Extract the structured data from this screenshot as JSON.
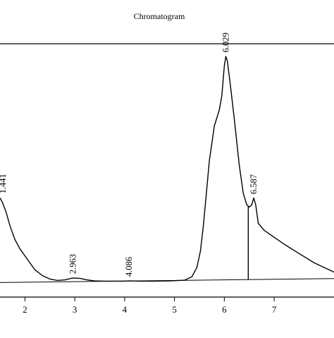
{
  "chart_data": {
    "type": "line",
    "title": "Chromatogram",
    "xlabel": "",
    "ylabel": "",
    "xlim": [
      1.5,
      8.2
    ],
    "ylim": [
      -0.01,
      1.0
    ],
    "grid": false,
    "legend": "none",
    "x_ticks": [
      2,
      3,
      4,
      5,
      6,
      7
    ],
    "x_tick_labels": [
      "2",
      "3",
      "4",
      "5",
      "6",
      "7"
    ],
    "peaks": [
      {
        "label": "1.441",
        "x": 1.441
      },
      {
        "label": "2.963",
        "x": 2.963
      },
      {
        "label": "4.086",
        "x": 4.086
      },
      {
        "label": "6.029",
        "x": 6.029
      },
      {
        "label": "6.587",
        "x": 6.587
      }
    ],
    "drop_line_x": 6.48,
    "baseline": {
      "start": [
        1.5,
        -0.005
      ],
      "end": [
        8.2,
        0.012
      ]
    },
    "series": [
      {
        "x": [
          1.5,
          1.55,
          1.62,
          1.7,
          1.8,
          1.9,
          2.0,
          2.1,
          2.2,
          2.35,
          2.5,
          2.65,
          2.8,
          2.95,
          3.1,
          3.25,
          3.4,
          3.6,
          3.8,
          4.0,
          4.1,
          4.3,
          4.6,
          4.9,
          5.2,
          5.35,
          5.45,
          5.52,
          5.58,
          5.64,
          5.7,
          5.8,
          5.9,
          5.95,
          6.0,
          6.03,
          6.06,
          6.12,
          6.2,
          6.3,
          6.38,
          6.45,
          6.5,
          6.55,
          6.59,
          6.63,
          6.68,
          6.8,
          7.0,
          7.2,
          7.5,
          7.8,
          8.0,
          8.2
        ],
        "y": [
          0.36,
          0.34,
          0.3,
          0.24,
          0.18,
          0.14,
          0.11,
          0.08,
          0.05,
          0.025,
          0.01,
          0.004,
          0.006,
          0.014,
          0.013,
          0.006,
          0.002,
          0.001,
          0.001,
          0.001,
          0.002,
          0.001,
          0.001,
          0.002,
          0.005,
          0.02,
          0.06,
          0.13,
          0.24,
          0.38,
          0.52,
          0.67,
          0.74,
          0.8,
          0.93,
          0.97,
          0.95,
          0.85,
          0.7,
          0.5,
          0.38,
          0.33,
          0.32,
          0.33,
          0.36,
          0.33,
          0.25,
          0.22,
          0.19,
          0.16,
          0.12,
          0.08,
          0.06,
          0.04
        ]
      }
    ]
  }
}
